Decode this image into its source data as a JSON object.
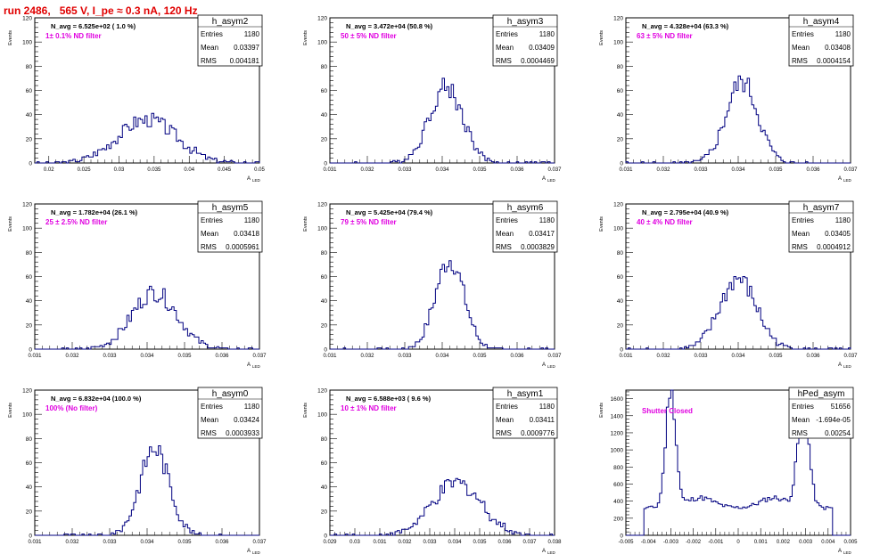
{
  "title": "run 2486,   565 V, I_pe ≈ 0.3 nA, 120 Hz",
  "colors": {
    "title": "#e00000",
    "note": "#e000e0",
    "hist": "#000080",
    "frame": "#000000"
  },
  "axis_labels": {
    "y": "Events",
    "x_main": "A",
    "x_sub": "LED"
  },
  "chart_data": [
    {
      "type": "histogram",
      "name": "h_asym2",
      "stats": {
        "entries": "1180",
        "mean": "0.03397",
        "rms": "0.004181"
      },
      "header": "N_avg = 6.525e+02 ( 1.0 %)",
      "note": "1± 0.1% ND filter",
      "xlim": [
        0.018,
        0.05
      ],
      "ylim": [
        0,
        120
      ],
      "xticks": [
        0.02,
        0.025,
        0.03,
        0.035,
        0.04,
        0.045,
        0.05
      ],
      "yticks": [
        0,
        20,
        40,
        60,
        80,
        100,
        120
      ],
      "mean": 0.034,
      "sigma": 0.0042,
      "entries": 1180,
      "nbins": 100
    },
    {
      "type": "histogram",
      "name": "h_asym3",
      "stats": {
        "entries": "1180",
        "mean": "0.03409",
        "rms": "0.0004469"
      },
      "header": "N_avg = 3.472e+04 (50.8 %)",
      "note": "50 ± 5% ND filter",
      "xlim": [
        0.031,
        0.037
      ],
      "ylim": [
        0,
        120
      ],
      "xticks": [
        0.031,
        0.032,
        0.033,
        0.034,
        0.035,
        0.036,
        0.037
      ],
      "yticks": [
        0,
        20,
        40,
        60,
        80,
        100,
        120
      ],
      "mean": 0.0341,
      "sigma": 0.00045,
      "entries": 1180,
      "nbins": 100
    },
    {
      "type": "histogram",
      "name": "h_asym4",
      "stats": {
        "entries": "1180",
        "mean": "0.03408",
        "rms": "0.0004154"
      },
      "header": "N_avg = 4.328e+04 (63.3 %)",
      "note": "63 ± 5% ND filter",
      "xlim": [
        0.031,
        0.037
      ],
      "ylim": [
        0,
        120
      ],
      "xticks": [
        0.031,
        0.032,
        0.033,
        0.034,
        0.035,
        0.036,
        0.037
      ],
      "yticks": [
        0,
        20,
        40,
        60,
        80,
        100,
        120
      ],
      "mean": 0.0341,
      "sigma": 0.00042,
      "entries": 1180,
      "nbins": 100
    },
    {
      "type": "histogram",
      "name": "h_asym5",
      "stats": {
        "entries": "1180",
        "mean": "0.03418",
        "rms": "0.0005961"
      },
      "header": "N_avg = 1.782e+04 (26.1 %)",
      "note": "25 ± 2.5% ND filter",
      "xlim": [
        0.031,
        0.037
      ],
      "ylim": [
        0,
        120
      ],
      "xticks": [
        0.031,
        0.032,
        0.033,
        0.034,
        0.035,
        0.036,
        0.037
      ],
      "yticks": [
        0,
        20,
        40,
        60,
        80,
        100,
        120
      ],
      "mean": 0.0342,
      "sigma": 0.0006,
      "entries": 1180,
      "nbins": 100
    },
    {
      "type": "histogram",
      "name": "h_asym6",
      "stats": {
        "entries": "1180",
        "mean": "0.03417",
        "rms": "0.0003829"
      },
      "header": "N_avg = 5.425e+04 (79.4 %)",
      "note": "79 ± 5% ND filter",
      "xlim": [
        0.031,
        0.037
      ],
      "ylim": [
        0,
        120
      ],
      "xticks": [
        0.031,
        0.032,
        0.033,
        0.034,
        0.035,
        0.036,
        0.037
      ],
      "yticks": [
        0,
        20,
        40,
        60,
        80,
        100,
        120
      ],
      "mean": 0.0342,
      "sigma": 0.00038,
      "entries": 1180,
      "nbins": 100
    },
    {
      "type": "histogram",
      "name": "h_asym7",
      "stats": {
        "entries": "1180",
        "mean": "0.03405",
        "rms": "0.0004912"
      },
      "header": "N_avg = 2.795e+04 (40.9 %)",
      "note": "40 ± 4% ND filter",
      "xlim": [
        0.031,
        0.037
      ],
      "ylim": [
        0,
        120
      ],
      "xticks": [
        0.031,
        0.032,
        0.033,
        0.034,
        0.035,
        0.036,
        0.037
      ],
      "yticks": [
        0,
        20,
        40,
        60,
        80,
        100,
        120
      ],
      "mean": 0.034,
      "sigma": 0.00049,
      "entries": 1180,
      "nbins": 100
    },
    {
      "type": "histogram",
      "name": "h_asym0",
      "stats": {
        "entries": "1180",
        "mean": "0.03424",
        "rms": "0.0003933"
      },
      "header": "N_avg = 6.832e+04 (100.0 %)",
      "note": "100% (No filter)",
      "xlim": [
        0.031,
        0.037
      ],
      "ylim": [
        0,
        120
      ],
      "xticks": [
        0.031,
        0.032,
        0.033,
        0.034,
        0.035,
        0.036,
        0.037
      ],
      "yticks": [
        0,
        20,
        40,
        60,
        80,
        100,
        120
      ],
      "mean": 0.0342,
      "sigma": 0.00039,
      "entries": 1180,
      "nbins": 100
    },
    {
      "type": "histogram",
      "name": "h_asym1",
      "stats": {
        "entries": "1180",
        "mean": "0.03411",
        "rms": "0.0009776"
      },
      "header": "N_avg = 6.588e+03 ( 9.6 %)",
      "note": "10 ± 1% ND filter",
      "xlim": [
        0.029,
        0.038
      ],
      "ylim": [
        0,
        120
      ],
      "xticks": [
        0.029,
        0.03,
        0.031,
        0.032,
        0.033,
        0.034,
        0.035,
        0.036,
        0.037,
        0.038
      ],
      "yticks": [
        0,
        20,
        40,
        60,
        80,
        100,
        120
      ],
      "mean": 0.0341,
      "sigma": 0.00098,
      "entries": 1180,
      "nbins": 100
    },
    {
      "type": "histogram",
      "name": "hPed_asym",
      "stats": {
        "entries": "51656",
        "mean": "-1.694e-05",
        "rms": "0.00254"
      },
      "header": "",
      "note": "Shutter Closed",
      "xlim": [
        -0.005,
        0.005
      ],
      "ylim": [
        0,
        1700
      ],
      "xticks": [
        -0.005,
        -0.004,
        -0.003,
        -0.002,
        -0.001,
        0,
        0.001,
        0.002,
        0.003,
        0.004,
        0.005
      ],
      "xtick_labels": [
        "-0.005",
        "-0.004",
        "-0.003",
        "-0.002",
        "-0.001",
        "0",
        "0.001",
        "0.002",
        "0.003",
        "0.004",
        "0.005"
      ],
      "yticks": [
        0,
        200,
        400,
        600,
        800,
        1000,
        1200,
        1400,
        1600
      ],
      "bimodal": true,
      "peaks": [
        -0.003,
        0.0029
      ],
      "peak_height": 1650,
      "valley_height": 320,
      "nbins": 100
    }
  ]
}
